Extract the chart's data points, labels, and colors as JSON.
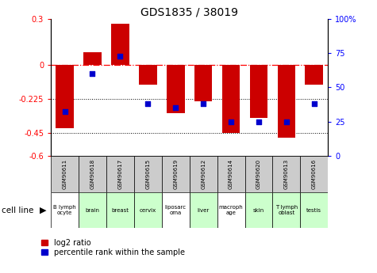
{
  "title": "GDS1835 / 38019",
  "gsm_labels": [
    "GSM90611",
    "GSM90618",
    "GSM90617",
    "GSM90615",
    "GSM90619",
    "GSM90612",
    "GSM90614",
    "GSM90620",
    "GSM90613",
    "GSM90616"
  ],
  "cell_types": [
    "B lymph\nocyte",
    "brain",
    "breast",
    "cervix",
    "liposarc\noma",
    "liver",
    "macroph\nage",
    "skin",
    "T lymph\noblast",
    "testis"
  ],
  "cell_bg_colors": [
    "#ffffff",
    "#ccffcc",
    "#ccffcc",
    "#ccffcc",
    "#ffffff",
    "#ccffcc",
    "#ffffff",
    "#ccffcc",
    "#ccffcc",
    "#ccffcc"
  ],
  "log2_ratio": [
    -0.42,
    0.08,
    0.27,
    -0.13,
    -0.32,
    -0.24,
    -0.45,
    -0.35,
    -0.48,
    -0.13
  ],
  "percentile_rank": [
    32,
    60,
    73,
    38,
    35,
    38,
    25,
    25,
    25,
    38
  ],
  "ylim_left": [
    -0.6,
    0.3
  ],
  "ylim_right": [
    0,
    100
  ],
  "left_yticks": [
    0.3,
    0,
    -0.225,
    -0.45,
    -0.6
  ],
  "right_yticks": [
    100,
    75,
    50,
    25,
    0
  ],
  "bar_color": "#cc0000",
  "dot_color": "#0000cc",
  "legend_bar_label": "log2 ratio",
  "legend_dot_label": "percentile rank within the sample",
  "cell_line_label": "cell line",
  "gsm_row_bg": "#cccccc",
  "fig_width": 4.75,
  "fig_height": 3.45,
  "dpi": 100
}
